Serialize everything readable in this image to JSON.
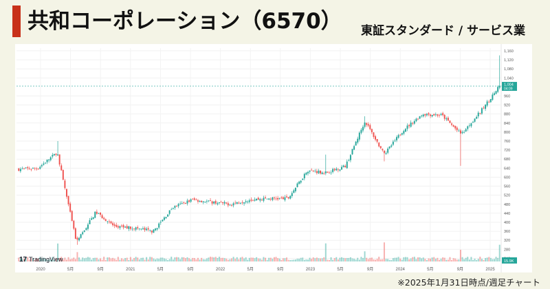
{
  "header": {
    "title": "共和コーポレーション（6570）",
    "market": "東証スタンダード / サービス業"
  },
  "footnote": "※2025年1月31日時点/週足チャート",
  "watermark": "TradingView",
  "colors": {
    "accent": "#c8311a",
    "up": "#26a69a",
    "down": "#ef5350",
    "background": "#f4f4e6"
  },
  "chart_data": {
    "type": "candlestick",
    "interval": "weekly",
    "yticks": [
      240,
      280,
      320,
      360,
      400,
      440,
      480,
      520,
      560,
      600,
      640,
      680,
      720,
      760,
      800,
      840,
      880,
      920,
      960,
      1040,
      1080,
      1120,
      1160
    ],
    "ylim": [
      226,
      1172
    ],
    "xticks": [
      "2020",
      "5月",
      "9月",
      "2021",
      "5月",
      "9月",
      "2022",
      "5月",
      "9月",
      "2023",
      "5月",
      "9月",
      "2024",
      "5月",
      "9月",
      "2025"
    ],
    "last_price": {
      "value": "1,004",
      "countdown": "04:09",
      "y": 1004
    },
    "volume_label": "15.9K",
    "key_points": [
      {
        "t": "2019-12",
        "close": 635
      },
      {
        "t": "2020-01",
        "close": 640
      },
      {
        "t": "2020-01-late",
        "high": 760,
        "close": 710
      },
      {
        "t": "2020-03",
        "low": 300,
        "close": 310
      },
      {
        "t": "2020-05",
        "close": 445
      },
      {
        "t": "2020-07",
        "close": 380
      },
      {
        "t": "2020-10",
        "close": 375
      },
      {
        "t": "2020-12",
        "close": 360
      },
      {
        "t": "2021-02",
        "close": 465
      },
      {
        "t": "2021-05",
        "close": 500
      },
      {
        "t": "2021-09",
        "close": 490
      },
      {
        "t": "2022-01",
        "close": 480
      },
      {
        "t": "2022-06",
        "close": 500
      },
      {
        "t": "2022-10",
        "close": 505
      },
      {
        "t": "2023-01",
        "close": 505
      },
      {
        "t": "2023-04",
        "close": 630
      },
      {
        "t": "2023-05",
        "high": 700,
        "close": 620
      },
      {
        "t": "2023-09",
        "close": 650
      },
      {
        "t": "2023-10",
        "high": 870,
        "close": 850
      },
      {
        "t": "2023-11",
        "low": 670,
        "close": 700
      },
      {
        "t": "2024-01",
        "close": 810
      },
      {
        "t": "2024-05",
        "close": 880
      },
      {
        "t": "2024-07",
        "close": 875
      },
      {
        "t": "2024-08",
        "low": 650,
        "close": 790
      },
      {
        "t": "2024-11",
        "close": 890
      },
      {
        "t": "2025-01",
        "high": 1140,
        "close": 1004
      }
    ]
  }
}
